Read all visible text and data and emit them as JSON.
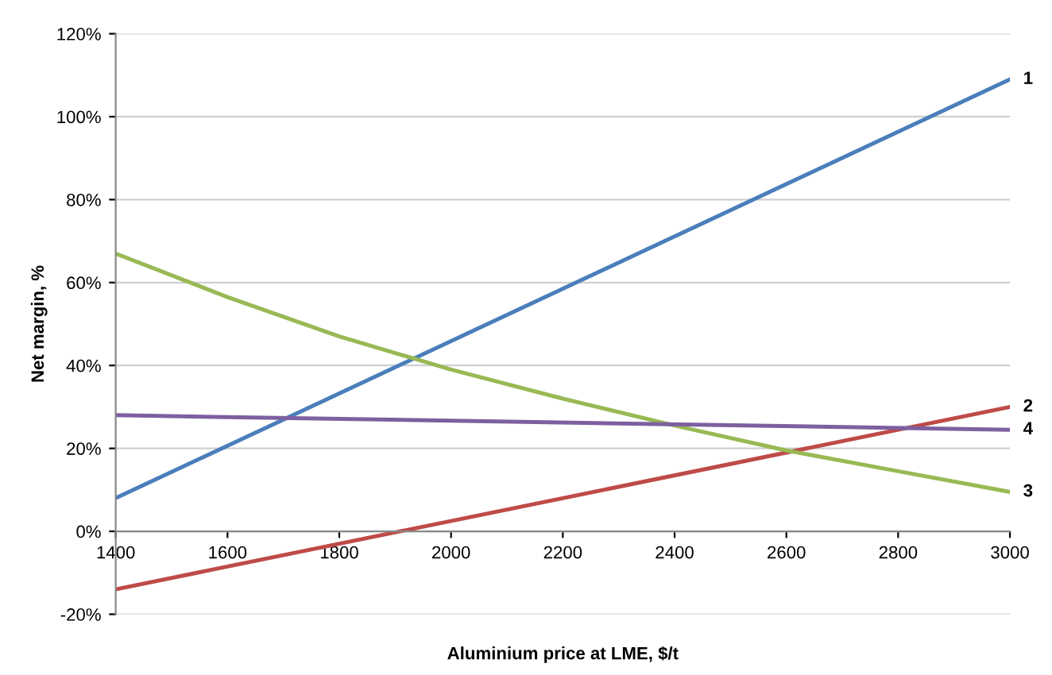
{
  "chart_data": {
    "type": "line",
    "xlabel": "Aluminium price at LME, $/t",
    "ylabel": "Net margin, %",
    "xlim": [
      1400,
      3000
    ],
    "xticks": [
      1400,
      1600,
      1800,
      2000,
      2200,
      2400,
      2600,
      2800,
      3000
    ],
    "ylim": [
      -20,
      120
    ],
    "yticks": [
      {
        "value": -20,
        "label": "-20%"
      },
      {
        "value": 0,
        "label": "0%"
      },
      {
        "value": 20,
        "label": "20%"
      },
      {
        "value": 40,
        "label": "40%"
      },
      {
        "value": 60,
        "label": "60%"
      },
      {
        "value": 80,
        "label": "80%"
      },
      {
        "value": 100,
        "label": "100%"
      },
      {
        "value": 120,
        "label": "120%"
      }
    ],
    "grid": "y",
    "marker": "none",
    "line_style": "solid",
    "legend": false,
    "series": [
      {
        "name": "1",
        "color": "#4a7ebb",
        "x": [
          1400,
          3000
        ],
        "values": [
          8,
          109
        ]
      },
      {
        "name": "2",
        "color": "#be4b48",
        "x": [
          1400,
          3000
        ],
        "values": [
          -14,
          30
        ]
      },
      {
        "name": "3",
        "color": "#98b954",
        "x": [
          1400,
          1600,
          1800,
          2000,
          2200,
          2400,
          2600,
          2800,
          3000
        ],
        "values": [
          67,
          56.5,
          47,
          39,
          32,
          25.5,
          19.5,
          14.5,
          9.5
        ]
      },
      {
        "name": "4",
        "color": "#7d60a0",
        "x": [
          1400,
          3000
        ],
        "values": [
          28,
          24.5
        ]
      }
    ]
  }
}
